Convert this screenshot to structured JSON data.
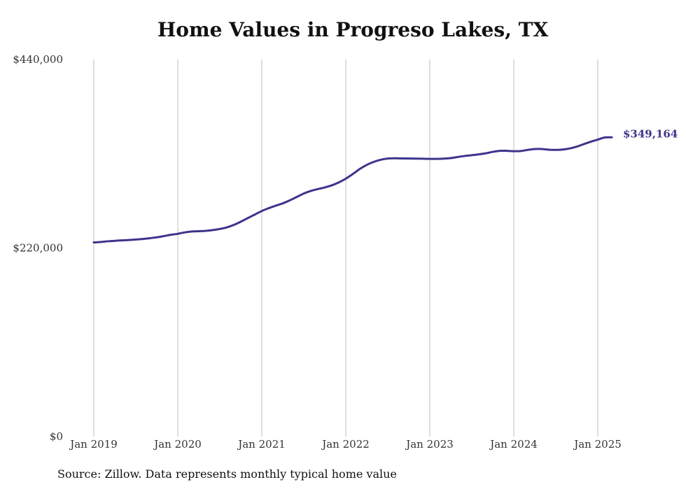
{
  "chart_data": {
    "type": "line",
    "title": "Home Values in Progreso Lakes, TX",
    "xlabel": "",
    "ylabel": "",
    "ylim": [
      0,
      440000
    ],
    "yticks": [
      {
        "value": 0,
        "label": "$0"
      },
      {
        "value": 220000,
        "label": "$220,000"
      },
      {
        "value": 440000,
        "label": "$440,000"
      }
    ],
    "xticks": [
      {
        "value": "2019-01",
        "label": "Jan 2019"
      },
      {
        "value": "2020-01",
        "label": "Jan 2020"
      },
      {
        "value": "2021-01",
        "label": "Jan 2021"
      },
      {
        "value": "2022-01",
        "label": "Jan 2022"
      },
      {
        "value": "2023-01",
        "label": "Jan 2023"
      },
      {
        "value": "2024-01",
        "label": "Jan 2024"
      },
      {
        "value": "2025-01",
        "label": "Jan 2025"
      }
    ],
    "xlim": [
      "2019-01",
      "2025-03"
    ],
    "grid": {
      "vertical": true,
      "horizontal": false
    },
    "line_color": "#3d348b",
    "end_label": "$349,164",
    "series": [
      {
        "x": [
          "2019-01",
          "2019-02",
          "2019-03",
          "2019-04",
          "2019-05",
          "2019-06",
          "2019-07",
          "2019-08",
          "2019-09",
          "2019-10",
          "2019-11",
          "2019-12",
          "2020-01",
          "2020-02",
          "2020-03",
          "2020-04",
          "2020-05",
          "2020-06",
          "2020-07",
          "2020-08",
          "2020-09",
          "2020-10",
          "2020-11",
          "2020-12",
          "2021-01",
          "2021-02",
          "2021-03",
          "2021-04",
          "2021-05",
          "2021-06",
          "2021-07",
          "2021-08",
          "2021-09",
          "2021-10",
          "2021-11",
          "2021-12",
          "2022-01",
          "2022-02",
          "2022-03",
          "2022-04",
          "2022-05",
          "2022-06",
          "2022-07",
          "2022-08",
          "2022-09",
          "2022-10",
          "2022-11",
          "2022-12",
          "2023-01",
          "2023-02",
          "2023-03",
          "2023-04",
          "2023-05",
          "2023-06",
          "2023-07",
          "2023-08",
          "2023-09",
          "2023-10",
          "2023-11",
          "2023-12",
          "2024-01",
          "2024-02",
          "2024-03",
          "2024-04",
          "2024-05",
          "2024-06",
          "2024-07",
          "2024-08",
          "2024-09",
          "2024-10",
          "2024-11",
          "2024-12",
          "2025-01",
          "2025-02",
          "2025-03"
        ],
        "values": [
          226500,
          227000,
          227800,
          228400,
          228900,
          229300,
          229900,
          230500,
          231400,
          232500,
          233900,
          235400,
          236600,
          238200,
          239300,
          239600,
          240000,
          240900,
          242200,
          244000,
          246900,
          250700,
          254900,
          259000,
          263200,
          266500,
          269400,
          272100,
          275600,
          279600,
          283600,
          286600,
          288700,
          290700,
          293100,
          296500,
          300900,
          306300,
          312200,
          317000,
          320500,
          323000,
          324400,
          324700,
          324500,
          324400,
          324300,
          324200,
          324000,
          324000,
          324300,
          324900,
          326200,
          327400,
          328300,
          329300,
          330500,
          332200,
          333400,
          333400,
          333000,
          333200,
          334500,
          335500,
          335500,
          334700,
          334500,
          334900,
          336200,
          338300,
          341200,
          344000,
          346500,
          349000,
          349164
        ]
      }
    ]
  },
  "source": "Source: Zillow. Data represents monthly typical home value"
}
